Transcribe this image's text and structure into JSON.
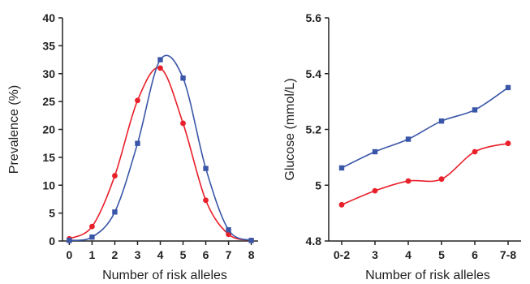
{
  "chart_data": [
    {
      "type": "line",
      "title": "",
      "xlabel": "Number of risk alleles",
      "ylabel": "Prevalence (%)",
      "x_ticks": [
        "0",
        "1",
        "2",
        "3",
        "4",
        "5",
        "6",
        "7",
        "8"
      ],
      "y_ticks": [
        "0",
        "5",
        "10",
        "15",
        "20",
        "25",
        "30",
        "35",
        "40"
      ],
      "xlim": [
        -0.3,
        8.3
      ],
      "ylim": [
        0,
        40
      ],
      "grid": false,
      "series": [
        {
          "color": "#e8202a",
          "marker": "circle",
          "x": [
            0,
            1,
            2,
            3,
            4,
            5,
            6,
            7,
            8
          ],
          "values": [
            0.4,
            2.6,
            11.7,
            25.2,
            31.0,
            21.1,
            7.3,
            1.2,
            0.1
          ]
        },
        {
          "color": "#3a56a8",
          "marker": "square",
          "x": [
            0,
            1,
            2,
            3,
            4,
            5,
            6,
            7,
            8
          ],
          "values": [
            0.1,
            0.7,
            5.2,
            17.5,
            32.5,
            29.2,
            13.0,
            2.0,
            0.1
          ]
        }
      ]
    },
    {
      "type": "line",
      "title": "",
      "xlabel": "Number of risk alleles",
      "ylabel": "Glucose (mmol/L)",
      "categories": [
        "0-2",
        "3",
        "4",
        "5",
        "6",
        "7-8"
      ],
      "y_ticks": [
        "4.8",
        "5",
        "5.2",
        "5.4",
        "5.6"
      ],
      "ylim": [
        4.8,
        5.6
      ],
      "grid": false,
      "series": [
        {
          "color": "#e8202a",
          "marker": "circle",
          "values": [
            4.93,
            4.98,
            5.015,
            5.022,
            5.12,
            5.15
          ]
        },
        {
          "color": "#3a56a8",
          "marker": "square",
          "values": [
            5.062,
            5.12,
            5.165,
            5.23,
            5.27,
            5.35
          ]
        }
      ]
    }
  ]
}
